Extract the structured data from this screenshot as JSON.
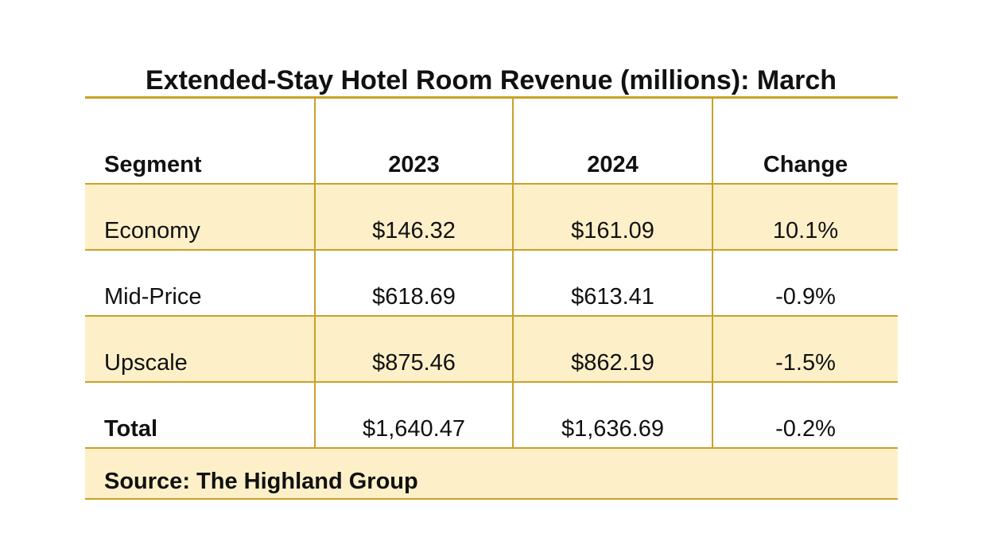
{
  "title": "Extended-Stay Hotel Room Revenue (millions): March",
  "headers": {
    "segment": "Segment",
    "y2023": "2023",
    "y2024": "2024",
    "change": "Change"
  },
  "rows": [
    {
      "segment": "Economy",
      "y2023": "$146.32",
      "y2024": "$161.09",
      "change": "10.1%"
    },
    {
      "segment": "Mid-Price",
      "y2023": "$618.69",
      "y2024": "$613.41",
      "change": "-0.9%"
    },
    {
      "segment": "Upscale",
      "y2023": "$875.46",
      "y2024": "$862.19",
      "change": "-1.5%"
    },
    {
      "segment": "Total",
      "y2023": "$1,640.47",
      "y2024": "$1,636.69",
      "change": "-0.2%"
    }
  ],
  "source": "Source: The Highland Group",
  "colors": {
    "border": "#c9a227",
    "shade": "#fdf0c9"
  }
}
